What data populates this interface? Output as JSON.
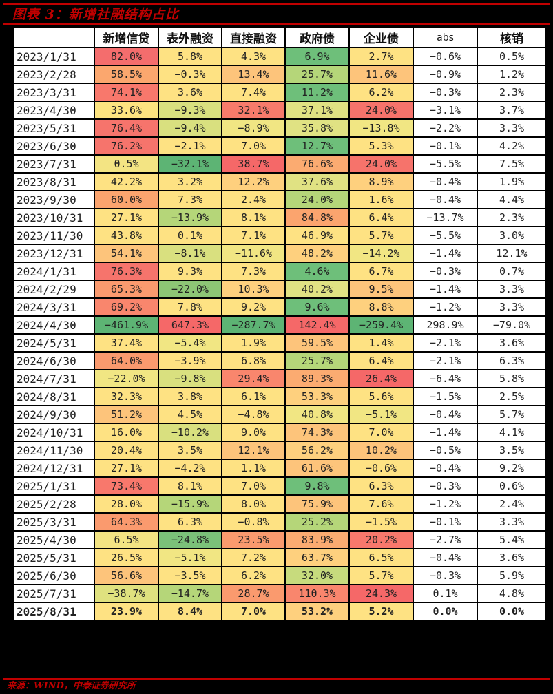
{
  "title": "图表 3：新增社融结构占比",
  "source": "来源：WIND，中泰证券研究所",
  "table": {
    "columns": [
      "",
      "新增信贷",
      "表外融资",
      "直接融资",
      "政府债",
      "企业债",
      "abs",
      "核销"
    ],
    "rows": [
      {
        "date": "2023/1/31",
        "values": [
          "82.0%",
          "5.8%",
          "4.3%",
          "6.9%",
          "2.7%",
          "−0.6%",
          "0.5%"
        ],
        "colors": [
          "#f46d6d",
          "#fee283",
          "#fee283",
          "#6ebf7a",
          "#fee283"
        ]
      },
      {
        "date": "2023/2/28",
        "values": [
          "58.5%",
          "−0.3%",
          "13.4%",
          "25.7%",
          "11.6%",
          "−0.9%",
          "1.2%"
        ],
        "colors": [
          "#fba76e",
          "#fee283",
          "#fdc47b",
          "#b5d679",
          "#fdc47b"
        ]
      },
      {
        "date": "2023/3/31",
        "values": [
          "74.1%",
          "3.6%",
          "7.4%",
          "11.2%",
          "6.2%",
          "−0.3%",
          "2.3%"
        ],
        "colors": [
          "#f8786c",
          "#fee283",
          "#fee283",
          "#6ebf7a",
          "#fee283"
        ]
      },
      {
        "date": "2023/4/30",
        "values": [
          "33.6%",
          "−9.3%",
          "32.1%",
          "37.1%",
          "24.0%",
          "−3.1%",
          "3.7%"
        ],
        "colors": [
          "#fde480",
          "#d9e07f",
          "#f77b6b",
          "#e0e283",
          "#f6736b"
        ]
      },
      {
        "date": "2023/5/31",
        "values": [
          "76.4%",
          "−9.4%",
          "−8.9%",
          "35.8%",
          "−13.8%",
          "−2.2%",
          "3.3%"
        ],
        "colors": [
          "#f6746c",
          "#d9e07f",
          "#f1e683",
          "#e0e283",
          "#f1e683"
        ]
      },
      {
        "date": "2023/6/30",
        "values": [
          "76.2%",
          "−2.1%",
          "7.0%",
          "12.7%",
          "5.3%",
          "−0.1%",
          "4.2%"
        ],
        "colors": [
          "#f6746c",
          "#fee283",
          "#fee283",
          "#6ebf7a",
          "#fee283"
        ]
      },
      {
        "date": "2023/7/31",
        "values": [
          "0.5%",
          "−32.1%",
          "38.7%",
          "76.6%",
          "24.0%",
          "−5.5%",
          "7.5%"
        ],
        "colors": [
          "#f3e483",
          "#5db474",
          "#f56868",
          "#fbab71",
          "#f6736b"
        ]
      },
      {
        "date": "2023/8/31",
        "values": [
          "42.2%",
          "3.2%",
          "12.2%",
          "37.6%",
          "8.9%",
          "−0.4%",
          "1.9%"
        ],
        "colors": [
          "#fee283",
          "#fee283",
          "#fed07e",
          "#e0e283",
          "#fed07e"
        ]
      },
      {
        "date": "2023/9/30",
        "values": [
          "60.0%",
          "7.3%",
          "2.4%",
          "24.0%",
          "1.6%",
          "−0.4%",
          "4.4%"
        ],
        "colors": [
          "#fba46e",
          "#fee283",
          "#fee283",
          "#b5d679",
          "#fee283"
        ]
      },
      {
        "date": "2023/10/31",
        "values": [
          "27.1%",
          "−13.9%",
          "8.1%",
          "84.8%",
          "6.4%",
          "−13.7%",
          "2.3%"
        ],
        "colors": [
          "#fee283",
          "#b5d679",
          "#fee283",
          "#fba46e",
          "#fee283"
        ]
      },
      {
        "date": "2023/11/30",
        "values": [
          "43.8%",
          "0.1%",
          "7.1%",
          "46.9%",
          "5.7%",
          "−5.5%",
          "3.0%"
        ],
        "colors": [
          "#fee283",
          "#fee283",
          "#fee283",
          "#fee283",
          "#fee283"
        ]
      },
      {
        "date": "2023/12/31",
        "values": [
          "54.1%",
          "−8.1%",
          "−11.6%",
          "48.2%",
          "−14.2%",
          "−1.4%",
          "12.1%"
        ],
        "colors": [
          "#fdc47b",
          "#d9e07f",
          "#f1e683",
          "#fed07e",
          "#f1e683"
        ]
      },
      {
        "date": "2024/1/31",
        "values": [
          "76.3%",
          "9.3%",
          "7.3%",
          "4.6%",
          "6.7%",
          "−0.3%",
          "0.7%"
        ],
        "colors": [
          "#f6746c",
          "#fee283",
          "#fee283",
          "#6ebf7a",
          "#fee283"
        ]
      },
      {
        "date": "2024/2/29",
        "values": [
          "65.3%",
          "−22.0%",
          "10.3%",
          "40.2%",
          "9.5%",
          "−1.4%",
          "3.3%"
        ],
        "colors": [
          "#fa9a6e",
          "#8dc675",
          "#fed07e",
          "#e0e283",
          "#fdc47b"
        ]
      },
      {
        "date": "2024/3/31",
        "values": [
          "69.2%",
          "7.8%",
          "9.2%",
          "9.6%",
          "8.8%",
          "−1.2%",
          "3.3%"
        ],
        "colors": [
          "#f9866d",
          "#fee283",
          "#fee283",
          "#6ebf7a",
          "#fed07e"
        ]
      },
      {
        "date": "2024/4/30",
        "values": [
          "−461.9%",
          "647.3%",
          "−287.7%",
          "142.4%",
          "−259.4%",
          "298.9%",
          "−79.0%"
        ],
        "colors": [
          "#5db474",
          "#f56868",
          "#5db474",
          "#f56868",
          "#5db474"
        ]
      },
      {
        "date": "2024/5/31",
        "values": [
          "37.4%",
          "−5.4%",
          "1.9%",
          "59.5%",
          "1.4%",
          "−2.1%",
          "3.6%"
        ],
        "colors": [
          "#fee283",
          "#f1e683",
          "#fee283",
          "#fdc47b",
          "#fee283"
        ]
      },
      {
        "date": "2024/6/30",
        "values": [
          "64.0%",
          "−3.9%",
          "6.8%",
          "25.7%",
          "6.4%",
          "−2.1%",
          "6.3%"
        ],
        "colors": [
          "#fa9a6e",
          "#fee283",
          "#fee283",
          "#b5d679",
          "#fee283"
        ]
      },
      {
        "date": "2024/7/31",
        "values": [
          "−22.0%",
          "−9.8%",
          "29.4%",
          "89.3%",
          "26.4%",
          "−6.4%",
          "5.8%"
        ],
        "colors": [
          "#f1e683",
          "#d9e07f",
          "#f9866d",
          "#fbab71",
          "#f56868"
        ]
      },
      {
        "date": "2024/8/31",
        "values": [
          "32.3%",
          "3.8%",
          "6.1%",
          "53.3%",
          "5.6%",
          "−1.5%",
          "2.5%"
        ],
        "colors": [
          "#fee283",
          "#fee283",
          "#fee283",
          "#fed07e",
          "#fee283"
        ]
      },
      {
        "date": "2024/9/30",
        "values": [
          "51.2%",
          "4.5%",
          "−4.8%",
          "40.8%",
          "−5.1%",
          "−0.4%",
          "5.7%"
        ],
        "colors": [
          "#fdc47b",
          "#fee283",
          "#fee283",
          "#f1e683",
          "#f1e683"
        ]
      },
      {
        "date": "2024/10/31",
        "values": [
          "16.0%",
          "−10.2%",
          "9.0%",
          "74.3%",
          "7.0%",
          "−1.4%",
          "4.1%"
        ],
        "colors": [
          "#fee283",
          "#d9e07f",
          "#fee283",
          "#fdc47b",
          "#fee283"
        ]
      },
      {
        "date": "2024/11/30",
        "values": [
          "20.4%",
          "3.5%",
          "12.1%",
          "56.2%",
          "10.2%",
          "−0.5%",
          "3.5%"
        ],
        "colors": [
          "#fee283",
          "#fee283",
          "#fdc47b",
          "#fed07e",
          "#fdc47b"
        ]
      },
      {
        "date": "2024/12/31",
        "values": [
          "27.1%",
          "−4.2%",
          "1.1%",
          "61.6%",
          "−0.6%",
          "−0.4%",
          "9.2%"
        ],
        "colors": [
          "#fee283",
          "#fee283",
          "#fee283",
          "#fdc47b",
          "#fee283"
        ]
      },
      {
        "date": "2025/1/31",
        "values": [
          "73.4%",
          "8.1%",
          "7.0%",
          "9.8%",
          "6.3%",
          "−0.3%",
          "0.6%"
        ],
        "colors": [
          "#f8786c",
          "#fee283",
          "#fee283",
          "#6ebf7a",
          "#fee283"
        ]
      },
      {
        "date": "2025/2/28",
        "values": [
          "28.0%",
          "−15.9%",
          "8.0%",
          "75.9%",
          "7.6%",
          "−1.2%",
          "2.4%"
        ],
        "colors": [
          "#fee283",
          "#b5d679",
          "#fee283",
          "#fdc47b",
          "#fee283"
        ]
      },
      {
        "date": "2025/3/31",
        "values": [
          "64.3%",
          "6.3%",
          "−0.8%",
          "25.2%",
          "−1.5%",
          "−0.1%",
          "3.3%"
        ],
        "colors": [
          "#fa9a6e",
          "#fee283",
          "#fee283",
          "#b5d679",
          "#fee283"
        ]
      },
      {
        "date": "2025/4/30",
        "values": [
          "6.5%",
          "−24.8%",
          "23.5%",
          "83.9%",
          "20.2%",
          "−2.7%",
          "5.4%"
        ],
        "colors": [
          "#f3e483",
          "#7bc179",
          "#fa9a6e",
          "#fbab71",
          "#f8786c"
        ]
      },
      {
        "date": "2025/5/31",
        "values": [
          "26.5%",
          "−5.1%",
          "7.2%",
          "63.7%",
          "6.5%",
          "−0.4%",
          "3.6%"
        ],
        "colors": [
          "#fee283",
          "#f1e683",
          "#fee283",
          "#fed07e",
          "#fee283"
        ]
      },
      {
        "date": "2025/6/30",
        "values": [
          "56.6%",
          "−3.5%",
          "6.2%",
          "32.0%",
          "5.7%",
          "−0.3%",
          "5.9%"
        ],
        "colors": [
          "#fdc47b",
          "#fee283",
          "#fee283",
          "#c7db7d",
          "#fee283"
        ]
      },
      {
        "date": "2025/7/31",
        "values": [
          "−38.7%",
          "−14.7%",
          "28.7%",
          "110.3%",
          "24.3%",
          "0.1%",
          "4.8%"
        ],
        "colors": [
          "#dfe17f",
          "#b5d679",
          "#fa9a6e",
          "#f9866d",
          "#f56868"
        ]
      },
      {
        "date": "2025/8/31",
        "values": [
          "23.9%",
          "8.4%",
          "7.0%",
          "53.2%",
          "5.2%",
          "0.0%",
          "0.0%"
        ],
        "colors": [
          "#fee283",
          "#fee283",
          "#fee283",
          "#fed07e",
          "#fee283"
        ]
      }
    ]
  }
}
